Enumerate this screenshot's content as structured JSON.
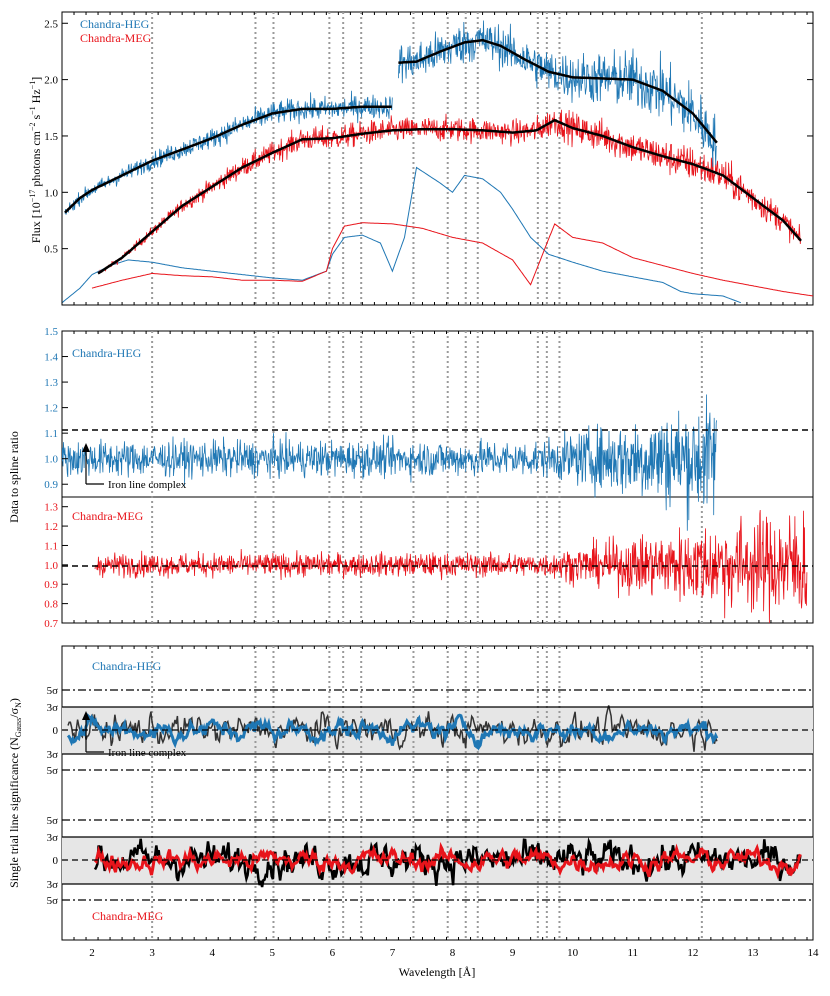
{
  "colors": {
    "heg": "#1f77b4",
    "meg": "#e8141b",
    "spline": "#000000",
    "marker_lines": "#9a9a9a",
    "significance_band": "#e6e6e6",
    "meg_bars": "#000000"
  },
  "chart_data": [
    {
      "type": "line",
      "panel": "flux",
      "ylabel_text": "Flux [10",
      "ylabel_exp1": "−17",
      "ylabel_mid": " photons cm",
      "ylabel_exp2": "−2",
      "ylabel_mid2": " s",
      "ylabel_exp3": "−1",
      "ylabel_end": " Hz",
      "ylabel_exp4": "−1",
      "ylabel_close": "]",
      "ylim": [
        0,
        2.6
      ],
      "xlim": [
        1.5,
        14
      ],
      "yticks": [
        "0.5",
        "1.0",
        "1.5",
        "2.0",
        "2.5"
      ],
      "legend": [
        {
          "name": "Chandra-HEG",
          "color_key": "heg"
        },
        {
          "name": "Chandra-MEG",
          "color_key": "meg"
        }
      ],
      "series": [
        {
          "name": "Chandra-HEG spline",
          "x": [
            1.55,
            1.8,
            2.0,
            2.5,
            3.0,
            3.5,
            4.0,
            4.5,
            5.0,
            5.5,
            6.0,
            6.5,
            7.0
          ],
          "values": [
            0.82,
            0.95,
            1.02,
            1.15,
            1.28,
            1.38,
            1.48,
            1.6,
            1.7,
            1.74,
            1.74,
            1.76,
            1.76
          ]
        },
        {
          "name": "Chandra-HEG spline (high)",
          "x": [
            7.1,
            7.4,
            7.8,
            8.2,
            8.5,
            8.8,
            9.2,
            9.6,
            10.0,
            10.5,
            11.0,
            11.5,
            12.0,
            12.4
          ],
          "values": [
            2.15,
            2.16,
            2.25,
            2.33,
            2.35,
            2.3,
            2.18,
            2.07,
            2.02,
            2.01,
            2.0,
            1.9,
            1.7,
            1.44
          ]
        },
        {
          "name": "Chandra-MEG spline",
          "x": [
            2.1,
            2.5,
            3.0,
            3.5,
            4.0,
            4.5,
            5.0,
            5.5,
            6.0,
            6.5,
            7.0,
            7.5,
            8.0,
            8.5,
            9.0,
            9.4,
            9.7,
            10.0,
            10.5,
            11.0,
            11.5,
            12.0,
            12.5,
            13.0,
            13.5,
            13.8
          ],
          "values": [
            0.28,
            0.42,
            0.65,
            0.88,
            1.05,
            1.22,
            1.35,
            1.47,
            1.48,
            1.52,
            1.55,
            1.56,
            1.56,
            1.55,
            1.53,
            1.55,
            1.64,
            1.57,
            1.5,
            1.4,
            1.32,
            1.25,
            1.15,
            0.95,
            0.75,
            0.57
          ]
        },
        {
          "name": "HEG effective area (thin)",
          "x": [
            1.5,
            1.8,
            2.0,
            2.3,
            2.6,
            3.0,
            3.5,
            4.0,
            4.5,
            5.0,
            5.5,
            5.9,
            6.0,
            6.2,
            6.5,
            6.8,
            7.0,
            7.2,
            7.4,
            7.6,
            7.8,
            8.0,
            8.2,
            8.5,
            8.8,
            9.0,
            9.3,
            9.6,
            10.0,
            10.5,
            11.0,
            11.5,
            11.8,
            12.0,
            12.5,
            12.8
          ],
          "values": [
            0.02,
            0.15,
            0.27,
            0.35,
            0.4,
            0.38,
            0.33,
            0.3,
            0.27,
            0.24,
            0.22,
            0.3,
            0.45,
            0.6,
            0.62,
            0.55,
            0.3,
            0.6,
            1.22,
            1.15,
            1.08,
            1.0,
            1.15,
            1.12,
            1.0,
            0.85,
            0.6,
            0.45,
            0.38,
            0.3,
            0.25,
            0.2,
            0.12,
            0.1,
            0.08,
            0.02
          ]
        },
        {
          "name": "MEG effective area (thin)",
          "x": [
            2.0,
            2.5,
            3.0,
            3.5,
            4.0,
            4.5,
            5.0,
            5.5,
            5.9,
            6.0,
            6.2,
            6.5,
            7.0,
            7.5,
            8.0,
            8.5,
            9.0,
            9.3,
            9.5,
            9.7,
            10.0,
            10.5,
            11.0,
            11.5,
            12.0,
            12.5,
            13.0,
            13.5,
            14.0
          ],
          "values": [
            0.15,
            0.22,
            0.28,
            0.26,
            0.25,
            0.22,
            0.22,
            0.21,
            0.3,
            0.5,
            0.7,
            0.73,
            0.72,
            0.68,
            0.6,
            0.55,
            0.4,
            0.18,
            0.45,
            0.72,
            0.6,
            0.55,
            0.42,
            0.35,
            0.28,
            0.22,
            0.17,
            0.12,
            0.08
          ]
        }
      ]
    },
    {
      "type": "line",
      "panel": "ratio",
      "ylabel": "Data to spline ratio",
      "heg_yticks": [
        "0.9",
        "1.0",
        "1.1",
        "1.2",
        "1.3",
        "1.4",
        "1.5"
      ],
      "meg_yticks": [
        "0.7",
        "0.8",
        "0.9",
        "1.0",
        "1.1",
        "1.2",
        "1.3"
      ],
      "heg_ylim": [
        0.85,
        1.5
      ],
      "meg_ylim": [
        0.7,
        1.35
      ],
      "reference": 1.0,
      "series": [
        {
          "name": "Chandra-HEG",
          "x_range": [
            1.5,
            12.4
          ]
        },
        {
          "name": "Chandra-MEG",
          "x_range": [
            2.05,
            13.9
          ]
        }
      ]
    },
    {
      "type": "line",
      "panel": "significance",
      "ylabel_text": "Single trial line significance (N",
      "ylabel_sub1": "Gauss",
      "ylabel_mid": "/σ",
      "ylabel_sub2": "N",
      "ylabel_close": ")",
      "yticks_heg": [
        "5σ",
        "3σ",
        "0",
        "3σ",
        "5σ"
      ],
      "yticks_meg": [
        "5σ",
        "3σ",
        "0",
        "3σ",
        "5σ"
      ],
      "xlabel": "Wavelength [Å]",
      "xticks": [
        "2",
        "3",
        "4",
        "5",
        "6",
        "7",
        "8",
        "9",
        "10",
        "11",
        "12",
        "13",
        "14"
      ],
      "series": [
        {
          "name": "Chandra-HEG",
          "x_range": [
            1.5,
            12.4
          ]
        },
        {
          "name": "Chandra-MEG",
          "x_range": [
            2.05,
            13.8
          ]
        }
      ]
    }
  ],
  "labels": {
    "heg_top": "Chandra-HEG",
    "meg_top": "Chandra-MEG",
    "heg_mid": "Chandra-HEG",
    "meg_mid": "Chandra-MEG",
    "heg_bot": "Chandra-HEG",
    "meg_bot": "Chandra-MEG",
    "iron_mid": "Iron line complex",
    "iron_bot": "Iron line complex"
  },
  "marker_lines_x": [
    3.0,
    4.72,
    5.02,
    5.95,
    6.18,
    6.48,
    7.35,
    7.92,
    8.22,
    8.42,
    9.42,
    9.57,
    9.78,
    12.15
  ]
}
